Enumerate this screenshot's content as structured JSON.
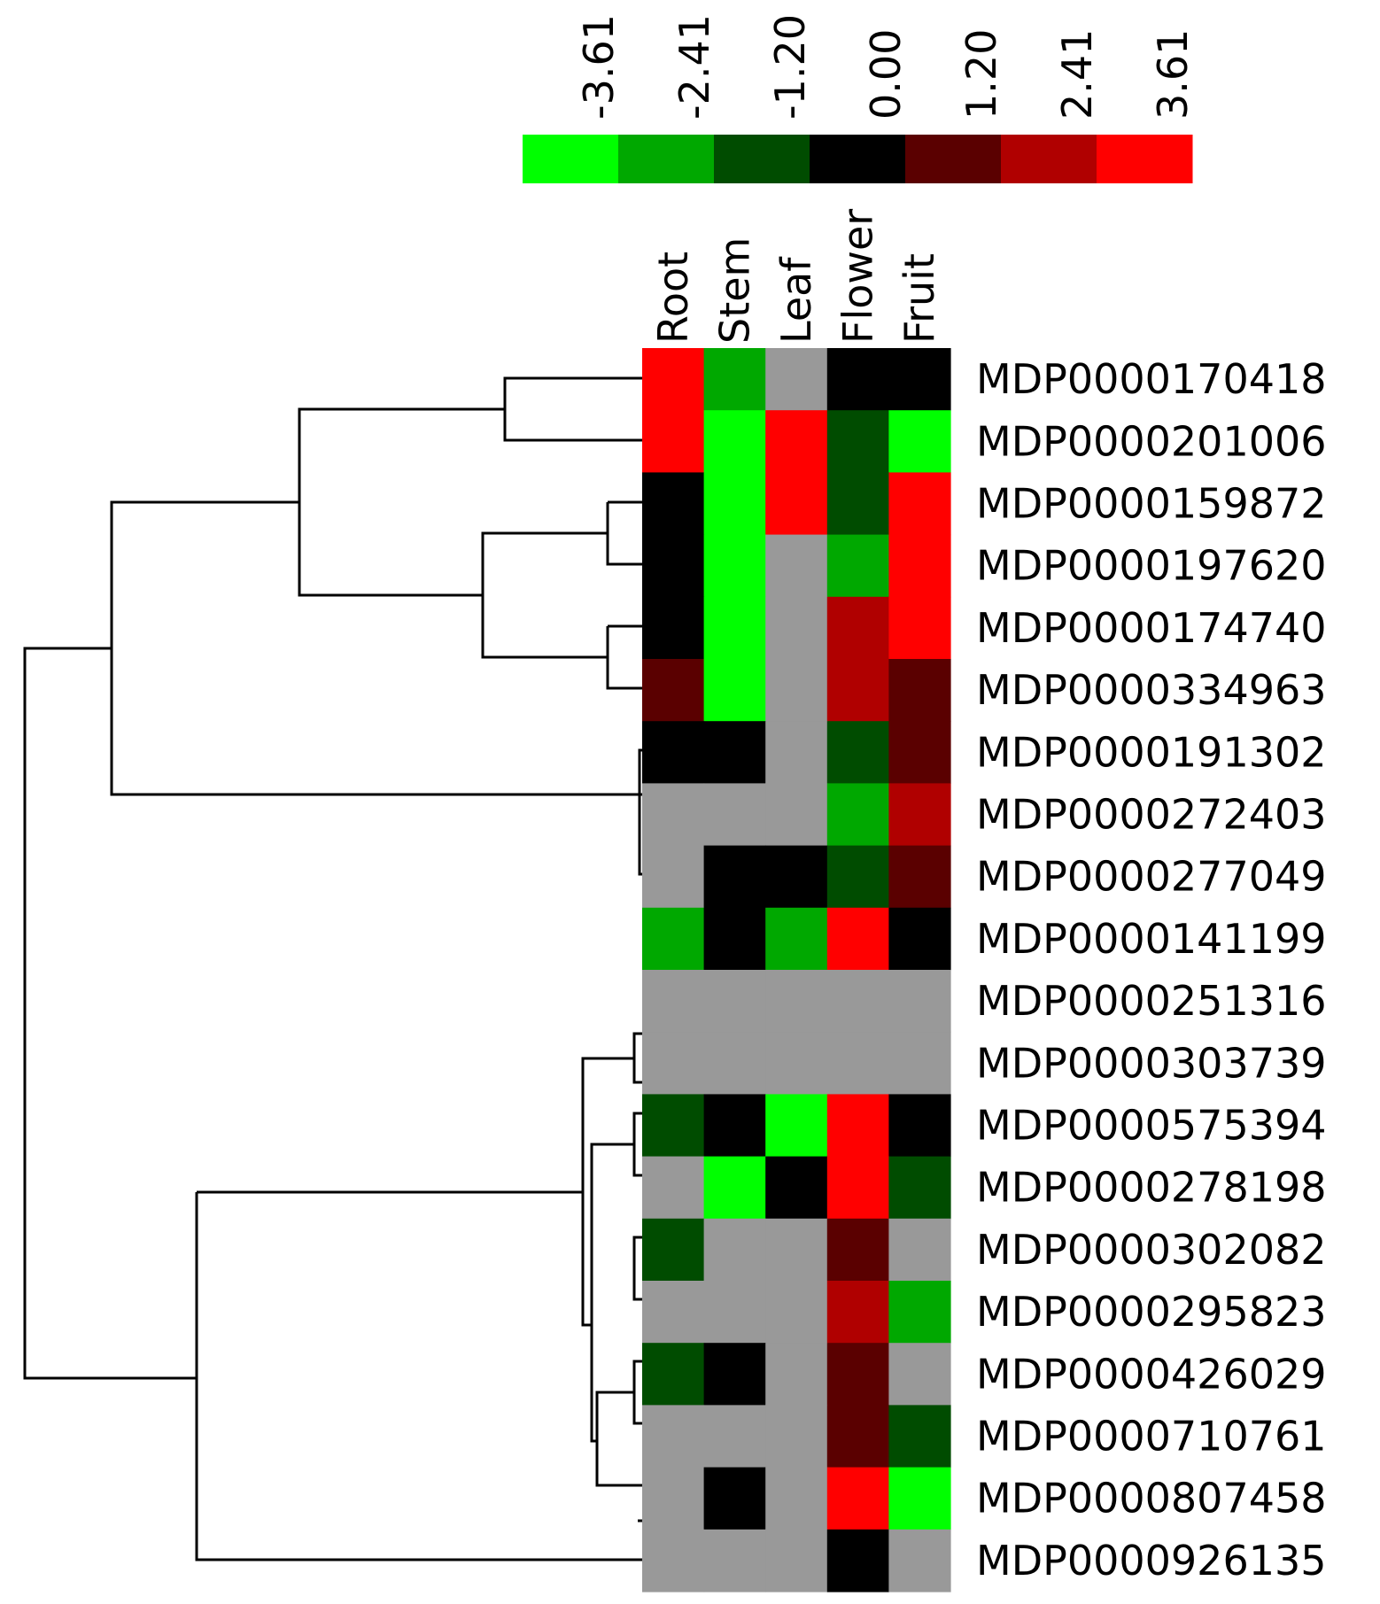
{
  "chart_data": {
    "type": "heatmap",
    "title": "",
    "xlabel": "",
    "ylabel": "",
    "colorbar": {
      "ticks": [
        "-3.61",
        "-2.41",
        "-1.20",
        "0.00",
        "1.20",
        "2.41",
        "3.61"
      ],
      "colors": [
        "#00ff00",
        "#00a800",
        "#004c00",
        "#000000",
        "#5a0000",
        "#b00000",
        "#ff0000"
      ],
      "range": [
        -3.61,
        3.61
      ]
    },
    "columns": [
      "Root",
      "Stem",
      "Leaf",
      "Flower",
      "Fruit"
    ],
    "rows": [
      "MDP0000170418",
      "MDP0000201006",
      "MDP0000159872",
      "MDP0000197620",
      "MDP0000174740",
      "MDP0000334963",
      "MDP0000191302",
      "MDP0000272403",
      "MDP0000277049",
      "MDP0000141199",
      "MDP0000251316",
      "MDP0000303739",
      "MDP0000575394",
      "MDP0000278198",
      "MDP0000302082",
      "MDP0000295823",
      "MDP0000426029",
      "MDP0000710761",
      "MDP0000807458",
      "MDP0000926135"
    ],
    "missing_color": "#999999",
    "values": [
      [
        3.61,
        -3.0,
        null,
        -0.5,
        0.3
      ],
      [
        3.61,
        -3.61,
        3.61,
        -1.6,
        -3.61
      ],
      [
        0.2,
        -3.61,
        3.61,
        -1.8,
        3.61
      ],
      [
        0.2,
        -3.61,
        null,
        -3.0,
        3.61
      ],
      [
        -0.3,
        -3.61,
        null,
        2.6,
        3.61
      ],
      [
        0.9,
        -3.61,
        null,
        2.6,
        1.5
      ],
      [
        -0.3,
        0.4,
        null,
        -1.3,
        1.0
      ],
      [
        null,
        null,
        null,
        -2.3,
        2.3
      ],
      [
        null,
        0.6,
        -0.4,
        -1.5,
        1.1
      ],
      [
        -2.7,
        0.3,
        -2.7,
        3.61,
        0.3
      ],
      [
        null,
        null,
        null,
        null,
        null
      ],
      [
        null,
        null,
        null,
        null,
        null
      ],
      [
        -1.8,
        0.3,
        -3.61,
        3.61,
        -0.6
      ],
      [
        null,
        -3.3,
        0.0,
        3.61,
        -1.2
      ],
      [
        -0.9,
        null,
        null,
        0.8,
        null
      ],
      [
        null,
        null,
        null,
        2.3,
        -2.3
      ],
      [
        -1.2,
        0.0,
        null,
        1.1,
        null
      ],
      [
        null,
        null,
        null,
        1.1,
        -1.4
      ],
      [
        null,
        -0.3,
        null,
        3.61,
        -3.61
      ],
      [
        null,
        null,
        null,
        0.0,
        null
      ]
    ]
  }
}
